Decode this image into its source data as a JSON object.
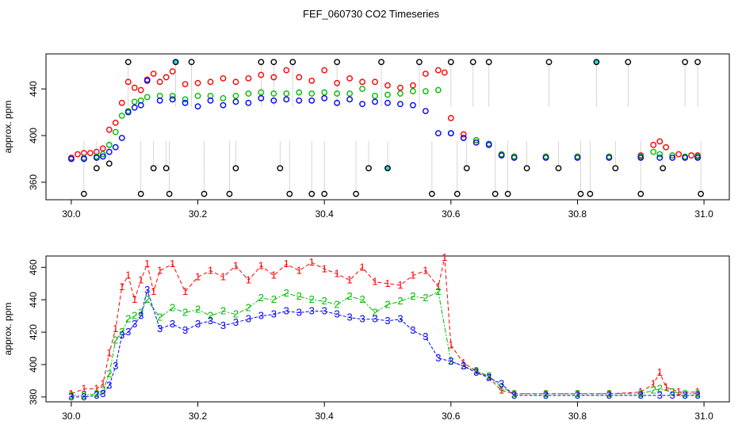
{
  "colors": {
    "series1": "#ff0000",
    "series2": "#00bb00",
    "series3": "#0000ff",
    "spike": "#000000",
    "spike_high_alt": "#22d3e0",
    "spike_line": "#999999"
  },
  "chart_data": [
    {
      "type": "scatter",
      "title": "FEF_060730  CO2 Timeseries",
      "xlabel": "",
      "ylabel": "approx. ppm",
      "xlim": [
        29.96,
        31.04
      ],
      "ylim": [
        345,
        470
      ],
      "xticks": [
        30.0,
        30.2,
        30.4,
        30.6,
        30.8,
        31.0
      ],
      "xtick_labels": [
        "30.0",
        "30.2",
        "30.4",
        "30.6",
        "30.8",
        "31.0"
      ],
      "yticks": [
        360,
        400,
        440
      ],
      "ytick_labels": [
        "360",
        "400",
        "440"
      ],
      "legend": "none",
      "series": [
        {
          "name": "1",
          "color": "#ff0000",
          "x": [
            30.0,
            30.01,
            30.02,
            30.03,
            30.04,
            30.05,
            30.06,
            30.07,
            30.08,
            30.09,
            30.1,
            30.11,
            30.12,
            30.13,
            30.14,
            30.15,
            30.16,
            30.18,
            30.2,
            30.22,
            30.24,
            30.26,
            30.28,
            30.3,
            30.32,
            30.34,
            30.36,
            30.38,
            30.4,
            30.42,
            30.44,
            30.46,
            30.48,
            30.5,
            30.52,
            30.54,
            30.56,
            30.58,
            30.59,
            30.6,
            30.62,
            30.64,
            30.66,
            30.68,
            30.7,
            30.75,
            30.8,
            30.85,
            30.9,
            30.92,
            30.93,
            30.94,
            30.96,
            30.98,
            30.99
          ],
          "y": [
            381,
            384,
            385,
            385,
            386,
            389,
            405,
            411,
            428,
            446,
            441,
            439,
            448,
            453,
            446,
            450,
            455,
            444,
            445,
            446,
            449,
            446,
            449,
            452,
            450,
            456,
            450,
            447,
            456,
            445,
            449,
            446,
            446,
            443,
            441,
            443,
            453,
            456,
            454,
            415,
            401,
            396,
            393,
            384,
            382,
            382,
            382,
            382,
            383,
            392,
            395,
            390,
            384,
            383,
            383
          ]
        },
        {
          "name": "2",
          "color": "#00bb00",
          "x": [
            30.0,
            30.02,
            30.04,
            30.05,
            30.06,
            30.07,
            30.08,
            30.09,
            30.1,
            30.11,
            30.12,
            30.14,
            30.16,
            30.18,
            30.2,
            30.22,
            30.24,
            30.26,
            30.28,
            30.3,
            30.32,
            30.34,
            30.36,
            30.38,
            30.4,
            30.42,
            30.44,
            30.46,
            30.48,
            30.5,
            30.52,
            30.54,
            30.56,
            30.58,
            30.6,
            30.62,
            30.64,
            30.66,
            30.68,
            30.7,
            30.75,
            30.8,
            30.85,
            30.9,
            30.92,
            30.93,
            30.95,
            30.97,
            30.99
          ],
          "y": [
            380,
            381,
            382,
            384,
            392,
            403,
            417,
            421,
            429,
            430,
            433,
            434,
            434,
            431,
            434,
            434,
            432,
            434,
            436,
            437,
            436,
            436,
            437,
            436,
            437,
            436,
            436,
            440,
            434,
            435,
            436,
            438,
            438,
            439,
            402,
            398,
            396,
            393,
            384,
            382,
            382,
            382,
            382,
            382,
            386,
            384,
            383,
            382,
            382
          ]
        },
        {
          "name": "3",
          "color": "#0000ff",
          "x": [
            30.0,
            30.02,
            30.04,
            30.05,
            30.06,
            30.07,
            30.08,
            30.09,
            30.1,
            30.11,
            30.12,
            30.14,
            30.16,
            30.18,
            30.2,
            30.22,
            30.24,
            30.26,
            30.28,
            30.3,
            30.32,
            30.34,
            30.36,
            30.38,
            30.4,
            30.42,
            30.44,
            30.46,
            30.48,
            30.5,
            30.52,
            30.54,
            30.56,
            30.58,
            30.6,
            30.62,
            30.64,
            30.66,
            30.68,
            30.7,
            30.75,
            30.8,
            30.85,
            30.9,
            30.93,
            30.95,
            30.97,
            30.99
          ],
          "y": [
            380,
            380,
            381,
            382,
            386,
            390,
            398,
            420,
            424,
            426,
            447,
            430,
            431,
            428,
            425,
            430,
            426,
            429,
            428,
            432,
            430,
            431,
            430,
            430,
            432,
            428,
            431,
            427,
            429,
            428,
            427,
            426,
            421,
            402,
            402,
            398,
            394,
            392,
            383,
            381,
            381,
            381,
            381,
            381,
            381,
            381,
            381,
            381
          ]
        },
        {
          "name": "spikes",
          "color": "#000000",
          "x": [
            30.02,
            30.04,
            30.06,
            30.09,
            30.11,
            30.13,
            30.15,
            30.155,
            30.165,
            30.19,
            30.21,
            30.25,
            30.26,
            30.3,
            30.32,
            30.33,
            30.345,
            30.35,
            30.38,
            30.4,
            30.42,
            30.45,
            30.47,
            30.49,
            30.5,
            30.55,
            30.57,
            30.6,
            30.61,
            30.625,
            30.635,
            30.66,
            30.67,
            30.69,
            30.72,
            30.755,
            30.77,
            30.805,
            30.82,
            30.83,
            30.86,
            30.88,
            30.9,
            30.935,
            30.97,
            30.99,
            30.995
          ],
          "y": [
            350,
            372,
            376,
            463,
            350,
            372,
            372,
            350,
            463,
            463,
            350,
            350,
            372,
            463,
            463,
            372,
            350,
            463,
            350,
            350,
            463,
            350,
            372,
            463,
            372,
            463,
            350,
            463,
            350,
            372,
            463,
            463,
            350,
            350,
            372,
            463,
            372,
            350,
            350,
            463,
            372,
            463,
            350,
            372,
            463,
            463,
            350
          ]
        }
      ]
    },
    {
      "type": "line",
      "title": "",
      "xlabel": "",
      "ylabel": "approx. ppm",
      "xlim": [
        29.96,
        31.04
      ],
      "ylim": [
        377,
        467
      ],
      "xticks": [
        30.0,
        30.2,
        30.4,
        30.6,
        30.8,
        31.0
      ],
      "xtick_labels": [
        "30.0",
        "30.2",
        "30.4",
        "30.6",
        "30.8",
        "31.0"
      ],
      "yticks": [
        380,
        400,
        420,
        440,
        460
      ],
      "ytick_labels": [
        "380",
        "400",
        "420",
        "440",
        "460"
      ],
      "legend": "none",
      "series": [
        {
          "name": "1",
          "marker": "1",
          "color": "#ff0000",
          "x": [
            30.0,
            30.02,
            30.04,
            30.05,
            30.06,
            30.07,
            30.08,
            30.09,
            30.1,
            30.11,
            30.12,
            30.13,
            30.14,
            30.16,
            30.18,
            30.2,
            30.22,
            30.24,
            30.26,
            30.28,
            30.3,
            30.32,
            30.34,
            30.36,
            30.38,
            30.4,
            30.42,
            30.44,
            30.46,
            30.48,
            30.5,
            30.52,
            30.54,
            30.56,
            30.58,
            30.59,
            30.6,
            30.62,
            30.64,
            30.66,
            30.68,
            30.7,
            30.75,
            30.8,
            30.85,
            30.9,
            30.92,
            30.93,
            30.94,
            30.96,
            30.99
          ],
          "y": [
            382,
            385,
            385,
            388,
            407,
            422,
            448,
            455,
            440,
            452,
            462,
            445,
            458,
            462,
            445,
            454,
            458,
            454,
            461,
            452,
            461,
            455,
            462,
            458,
            463,
            459,
            456,
            452,
            460,
            451,
            450,
            449,
            455,
            458,
            448,
            466,
            412,
            401,
            396,
            392,
            384,
            382,
            382,
            382,
            382,
            383,
            388,
            395,
            386,
            383,
            383
          ]
        },
        {
          "name": "2",
          "marker": "2",
          "color": "#00bb00",
          "x": [
            30.0,
            30.02,
            30.04,
            30.05,
            30.06,
            30.07,
            30.08,
            30.09,
            30.1,
            30.11,
            30.12,
            30.14,
            30.16,
            30.18,
            30.2,
            30.22,
            30.24,
            30.26,
            30.28,
            30.3,
            30.32,
            30.34,
            30.36,
            30.38,
            30.4,
            30.42,
            30.44,
            30.46,
            30.48,
            30.5,
            30.52,
            30.54,
            30.56,
            30.58,
            30.6,
            30.62,
            30.64,
            30.66,
            30.68,
            30.7,
            30.75,
            30.8,
            30.85,
            30.9,
            30.92,
            30.93,
            30.95,
            30.97,
            30.99
          ],
          "y": [
            381,
            381,
            382,
            384,
            394,
            415,
            420,
            428,
            430,
            432,
            440,
            429,
            435,
            432,
            434,
            430,
            433,
            431,
            435,
            441,
            440,
            444,
            442,
            440,
            439,
            437,
            442,
            440,
            432,
            437,
            439,
            442,
            441,
            445,
            402,
            399,
            396,
            393,
            386,
            382,
            382,
            382,
            382,
            382,
            384,
            385,
            383,
            382,
            382
          ]
        },
        {
          "name": "3",
          "marker": "3",
          "color": "#0000ff",
          "x": [
            30.0,
            30.02,
            30.04,
            30.05,
            30.06,
            30.07,
            30.08,
            30.09,
            30.1,
            30.11,
            30.12,
            30.14,
            30.16,
            30.18,
            30.2,
            30.22,
            30.24,
            30.26,
            30.28,
            30.3,
            30.32,
            30.34,
            30.36,
            30.38,
            30.4,
            30.42,
            30.44,
            30.46,
            30.48,
            30.5,
            30.52,
            30.54,
            30.56,
            30.58,
            30.6,
            30.62,
            30.64,
            30.66,
            30.68,
            30.7,
            30.75,
            30.8,
            30.85,
            30.9,
            30.93,
            30.95,
            30.97,
            30.99
          ],
          "y": [
            380,
            380,
            381,
            382,
            387,
            399,
            418,
            420,
            425,
            430,
            446,
            422,
            425,
            421,
            425,
            427,
            424,
            426,
            428,
            430,
            431,
            433,
            432,
            433,
            433,
            431,
            429,
            428,
            428,
            427,
            428,
            421,
            417,
            404,
            402,
            399,
            395,
            392,
            388,
            381,
            381,
            381,
            381,
            381,
            381,
            381,
            381,
            381
          ]
        }
      ]
    }
  ]
}
